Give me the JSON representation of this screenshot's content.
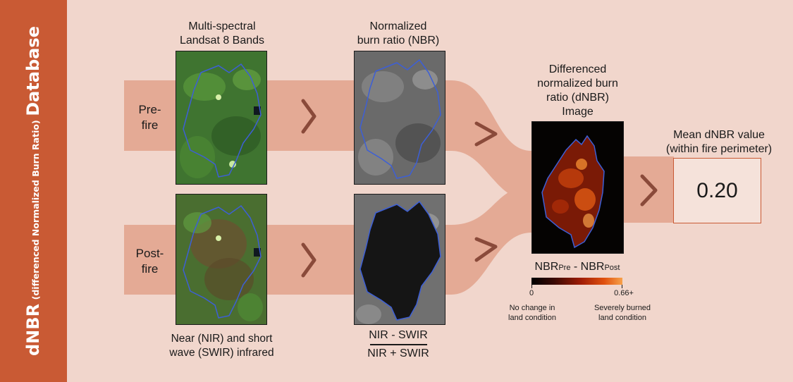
{
  "sidebar": {
    "title_main": "dNBR",
    "title_sub": "(differenced Normalized Burn Ratio)",
    "title_tail": "Database"
  },
  "rows": {
    "pre_fire": "Pre-\nfire",
    "post_fire": "Post-\nfire"
  },
  "columns": {
    "landsat_title": "Multi-spectral\nLandsat 8 Bands",
    "landsat_caption": "Near (NIR) and short\nwave (SWIR) infrared",
    "nbr_title": "Normalized\nburn ratio (NBR)",
    "nbr_numerator": "NIR - SWIR",
    "nbr_denominator": "NIR + SWIR",
    "dnbr_title": "Differenced\nnormalized burn\nratio (dNBR)\nImage",
    "dnbr_formula_base": "NBR",
    "dnbr_formula_pre": "Pre",
    "dnbr_formula_minus": " - NBR",
    "dnbr_formula_post": "Post",
    "result_title": "Mean dNBR value\n(within fire perimeter)",
    "result_value": "0.20"
  },
  "colorbar": {
    "min_label": "0",
    "max_label": "0.66+",
    "low_desc": "No change in\nland condition",
    "high_desc": "Severely burned\nland condition",
    "colors": [
      "#000000",
      "#3a0a04",
      "#a11d06",
      "#e0510f",
      "#f7a14a"
    ]
  },
  "palette": {
    "sidebar_bg": "#c95a34",
    "panel_bg": "#f1d6cc",
    "flow_band": "#e4aa95",
    "arrow": "#8a4a3a",
    "perimeter": "#3d5fd6"
  }
}
